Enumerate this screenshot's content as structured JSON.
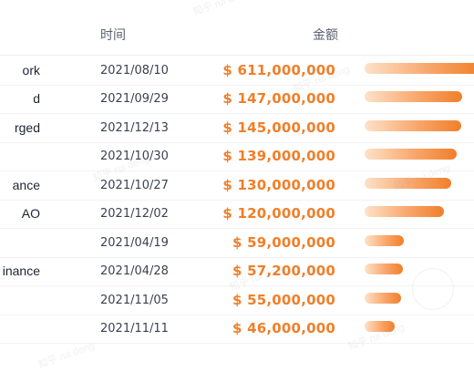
{
  "header": {
    "time_label": "时间",
    "amount_label": "金额"
  },
  "rows": [
    {
      "name": "ork",
      "date": "2021/08/10",
      "amount": "$ 611,000,000",
      "value": 611000000
    },
    {
      "name": "d",
      "date": "2021/09/29",
      "amount": "$ 147,000,000",
      "value": 147000000
    },
    {
      "name": "rged",
      "date": "2021/12/13",
      "amount": "$ 145,000,000",
      "value": 145000000
    },
    {
      "name": "",
      "date": "2021/10/30",
      "amount": "$ 139,000,000",
      "value": 139000000
    },
    {
      "name": "ance",
      "date": "2021/10/27",
      "amount": "$ 130,000,000",
      "value": 130000000
    },
    {
      "name": "AO",
      "date": "2021/12/02",
      "amount": "$ 120,000,000",
      "value": 120000000
    },
    {
      "name": "",
      "date": "2021/04/19",
      "amount": "$ 59,000,000",
      "value": 59000000
    },
    {
      "name": "inance",
      "date": "2021/04/28",
      "amount": "$ 57,200,000",
      "value": 57200000
    },
    {
      "name": "",
      "date": "2021/11/05",
      "amount": "$ 55,000,000",
      "value": 55000000
    },
    {
      "name": "",
      "date": "2021/11/11",
      "amount": "$ 46,000,000",
      "value": 46000000
    }
  ],
  "watermark": {
    "text": "知乎 rui deng"
  }
}
